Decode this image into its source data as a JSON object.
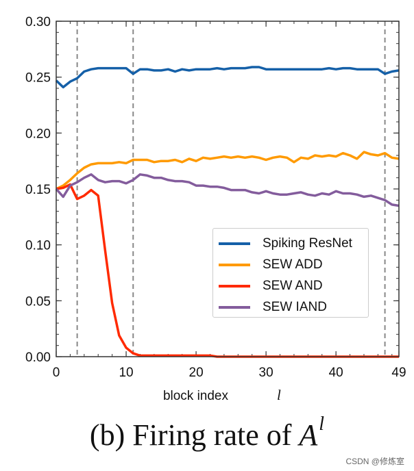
{
  "chart_data": {
    "type": "line",
    "title": "",
    "xlabel": "block index",
    "xlabel_symbol": "l",
    "ylabel": "",
    "xlim": [
      0,
      49
    ],
    "ylim": [
      0,
      0.3
    ],
    "xticks": [
      "0",
      "10",
      "20",
      "30",
      "40",
      "49"
    ],
    "yticks": [
      "0.00",
      "0.05",
      "0.10",
      "0.15",
      "0.20",
      "0.25",
      "0.30"
    ],
    "grid": false,
    "legend_position": "center-right",
    "vlines": [
      3,
      11,
      47
    ],
    "series": [
      {
        "name": "Spiking ResNet",
        "color": "#1560a8",
        "values": [
          0.247,
          0.241,
          0.246,
          0.249,
          0.255,
          0.257,
          0.258,
          0.258,
          0.258,
          0.258,
          0.258,
          0.253,
          0.257,
          0.257,
          0.256,
          0.256,
          0.257,
          0.255,
          0.257,
          0.256,
          0.257,
          0.257,
          0.257,
          0.258,
          0.257,
          0.258,
          0.258,
          0.258,
          0.259,
          0.259,
          0.257,
          0.257,
          0.257,
          0.257,
          0.257,
          0.257,
          0.257,
          0.257,
          0.257,
          0.258,
          0.257,
          0.258,
          0.258,
          0.257,
          0.257,
          0.257,
          0.257,
          0.253,
          0.255,
          0.256
        ]
      },
      {
        "name": "SEW ADD",
        "color": "#ff9a00",
        "values": [
          0.15,
          0.153,
          0.158,
          0.164,
          0.169,
          0.172,
          0.173,
          0.173,
          0.173,
          0.174,
          0.173,
          0.176,
          0.176,
          0.176,
          0.174,
          0.175,
          0.175,
          0.176,
          0.174,
          0.177,
          0.175,
          0.178,
          0.177,
          0.178,
          0.179,
          0.178,
          0.179,
          0.178,
          0.179,
          0.178,
          0.176,
          0.178,
          0.179,
          0.178,
          0.174,
          0.178,
          0.177,
          0.18,
          0.179,
          0.18,
          0.179,
          0.182,
          0.18,
          0.177,
          0.183,
          0.181,
          0.18,
          0.182,
          0.178,
          0.177
        ]
      },
      {
        "name": "SEW AND",
        "color": "#ff2a00",
        "values": [
          0.15,
          0.151,
          0.154,
          0.141,
          0.144,
          0.149,
          0.144,
          0.095,
          0.048,
          0.019,
          0.008,
          0.003,
          0.001,
          0.001,
          0.001,
          0.001,
          0.001,
          0.001,
          0.001,
          0.001,
          0.001,
          0.001,
          0.001,
          0,
          0,
          0,
          0,
          0,
          0,
          0,
          0,
          0,
          0,
          0,
          0,
          0,
          0,
          0,
          0,
          0,
          0,
          0,
          0,
          0,
          0,
          0,
          0,
          0,
          0,
          0
        ]
      },
      {
        "name": "SEW IAND",
        "color": "#835c9c",
        "values": [
          0.15,
          0.143,
          0.153,
          0.156,
          0.16,
          0.163,
          0.158,
          0.156,
          0.157,
          0.157,
          0.155,
          0.158,
          0.163,
          0.162,
          0.16,
          0.16,
          0.158,
          0.157,
          0.157,
          0.156,
          0.153,
          0.153,
          0.152,
          0.152,
          0.151,
          0.149,
          0.149,
          0.149,
          0.147,
          0.146,
          0.148,
          0.146,
          0.145,
          0.145,
          0.146,
          0.147,
          0.145,
          0.144,
          0.146,
          0.145,
          0.148,
          0.146,
          0.146,
          0.145,
          0.143,
          0.144,
          0.142,
          0.14,
          0.136,
          0.135
        ]
      }
    ]
  },
  "caption": {
    "prefix": "(b)  Firing rate of ",
    "symbol": "A",
    "superscript": "l"
  },
  "watermark": "CSDN @修炼室"
}
